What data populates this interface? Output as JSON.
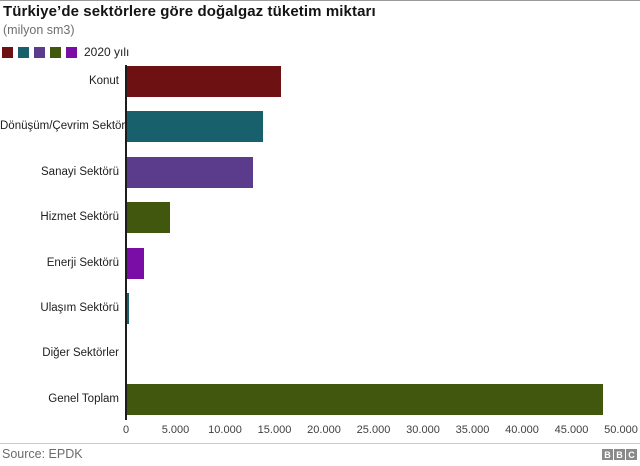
{
  "header": {
    "title": "Türkiye’de sektörlere göre doğalgaz tüketim miktarı",
    "subtitle": "(milyon sm3)"
  },
  "legend": {
    "label": "2020 yılı",
    "swatch_colors": [
      "#6e1112",
      "#17606c",
      "#5a3b8c",
      "#42570e",
      "#7a0da6"
    ]
  },
  "chart_data": {
    "type": "bar",
    "orientation": "horizontal",
    "title": "Türkiye’de sektörlere göre doğalgaz tüketim miktarı",
    "subtitle": "(milyon sm3)",
    "series_name": "2020 yılı",
    "unit": "milyon sm3",
    "categories": [
      "Konut",
      "Dönüşüm/Çevrim Sektörü",
      "Sanayi Sektörü",
      "Hizmet Sektörü",
      "Enerji Sektörü",
      "Ulaşım Sektörü",
      "Diğer Sektörler",
      "Genel Toplam"
    ],
    "values": [
      15700,
      13800,
      12800,
      4450,
      1800,
      300,
      150,
      48200
    ],
    "bar_colors": [
      "#6e1112",
      "#17606c",
      "#5a3b8c",
      "#42570e",
      "#7a0da6",
      "#17606c",
      "#7a0da6",
      "#42570e"
    ],
    "xlim": [
      0,
      50000
    ],
    "x_ticks": [
      0,
      5000,
      10000,
      15000,
      20000,
      25000,
      30000,
      35000,
      40000,
      45000,
      50000
    ],
    "x_tick_labels": [
      "0",
      "5.000",
      "10.000",
      "15.000",
      "20.000",
      "25.000",
      "30.000",
      "35.000",
      "40.000",
      "45.000",
      "50.000"
    ],
    "grid": false,
    "legend_position": "top-left"
  },
  "footer": {
    "source": "Source: EPDK",
    "logo_letters": [
      "B",
      "B",
      "C"
    ]
  }
}
